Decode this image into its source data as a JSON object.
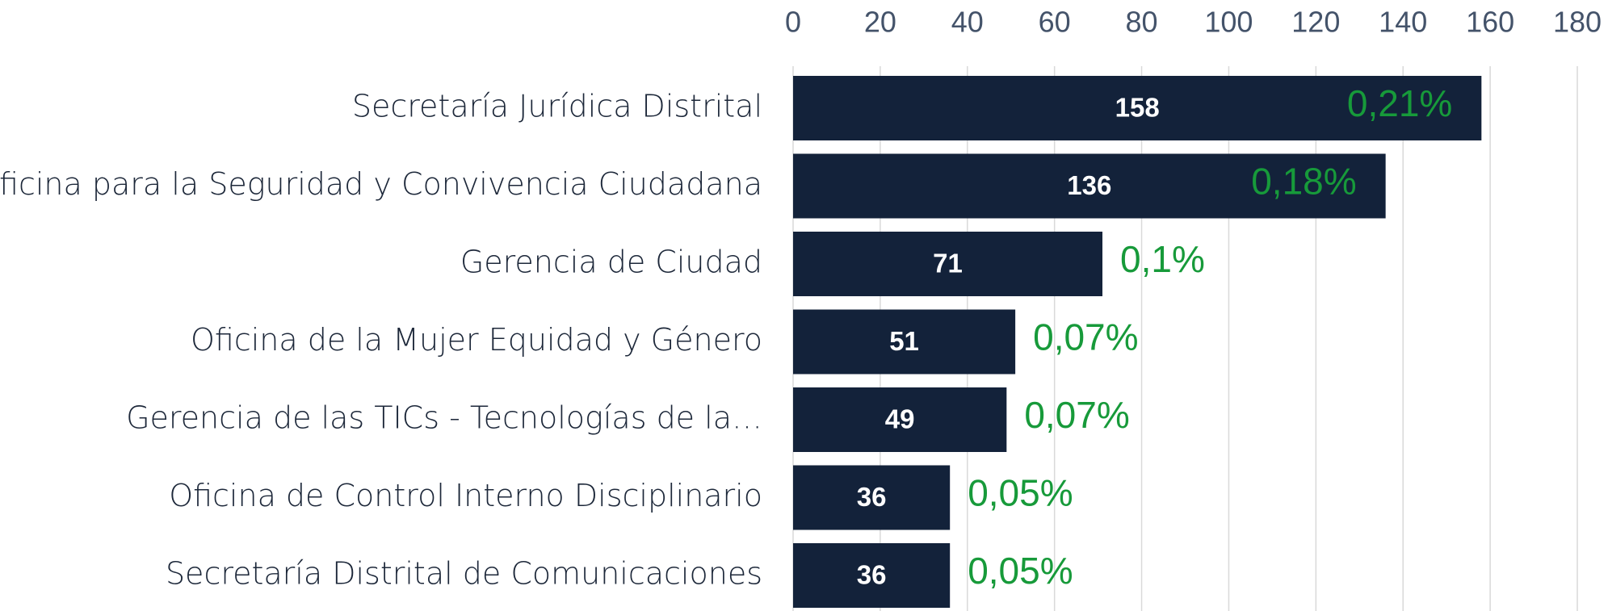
{
  "chart_data": {
    "type": "bar",
    "orientation": "horizontal",
    "categories": [
      "Secretaría Jurídica Distrital",
      "Oficina para la Seguridad y Convivencia Ciudadana",
      "Gerencia de Ciudad",
      "Oficina de la Mujer Equidad y Género",
      "Gerencia de las TICs - Tecnologías de la…",
      "Oficina de Control Interno Disciplinario",
      "Secretaría Distrital de Comunicaciones"
    ],
    "values": [
      158,
      136,
      71,
      51,
      49,
      36,
      36
    ],
    "annotations": [
      "0,21%",
      "0,18%",
      "0,1%",
      "0,07%",
      "0,07%",
      "0,05%",
      "0,05%"
    ],
    "color": "#13223a",
    "annotation_color": "#179a3a",
    "xlim": [
      0,
      180
    ],
    "xticks": [
      0,
      20,
      40,
      60,
      80,
      100,
      120,
      140,
      160,
      180
    ],
    "grid": true,
    "axis_position": "top"
  }
}
